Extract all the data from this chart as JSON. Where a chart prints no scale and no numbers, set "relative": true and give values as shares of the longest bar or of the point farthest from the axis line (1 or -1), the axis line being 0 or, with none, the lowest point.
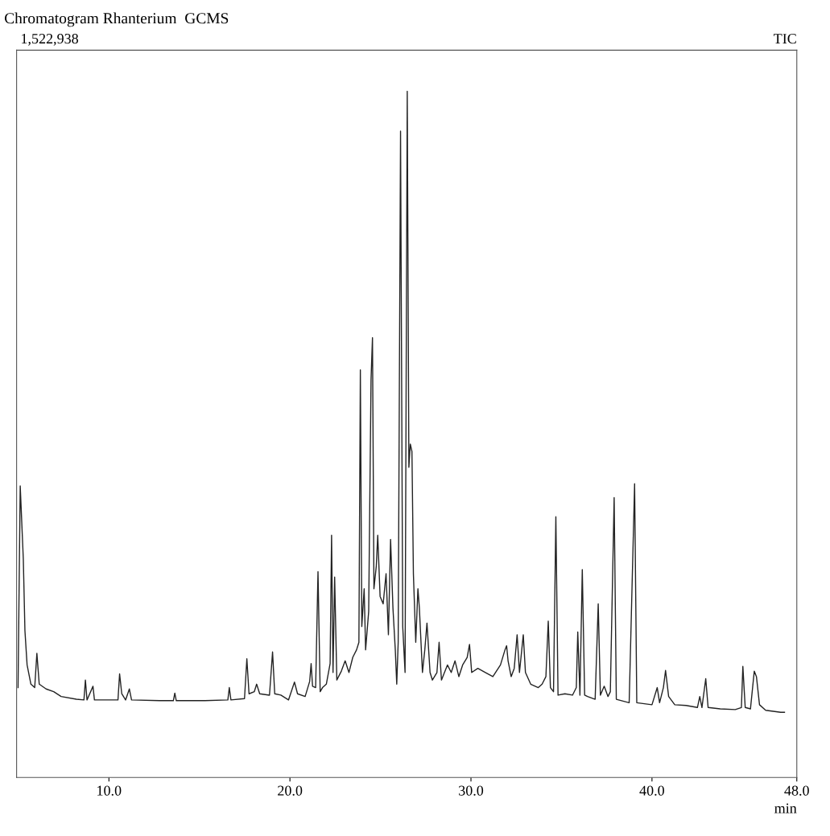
{
  "chart_data": {
    "type": "line",
    "title": "Chromatogram Rhanterium  GCMS",
    "xlabel": "min",
    "relative": true,
    "annotations": [
      "1,522,938",
      "TIC"
    ],
    "xlim": [
      4.9,
      48.0
    ],
    "xticks": [
      {
        "value": 10,
        "label": "10.0"
      },
      {
        "value": 20,
        "label": "20.0"
      },
      {
        "value": 30,
        "label": "30.0"
      },
      {
        "value": 40,
        "label": "40.0"
      },
      {
        "value": 48,
        "label": "48.0"
      }
    ],
    "grid": false,
    "marker": "none",
    "line_style": "solid",
    "series": [
      {
        "color": "#222222",
        "x": [
          4.98,
          5.1,
          5.27,
          5.36,
          5.48,
          5.69,
          5.9,
          6.02,
          6.15,
          6.53,
          6.95,
          7.36,
          8.2,
          8.62,
          8.7,
          8.79,
          9.12,
          9.2,
          10.5,
          10.59,
          10.71,
          10.92,
          11.13,
          11.25,
          12.8,
          13.56,
          13.64,
          13.72,
          15.31,
          16.57,
          16.65,
          16.74,
          17.49,
          17.62,
          17.74,
          18.03,
          18.16,
          18.33,
          18.87,
          19.04,
          19.16,
          19.5,
          19.92,
          20.25,
          20.42,
          20.84,
          21.09,
          21.17,
          21.25,
          21.42,
          21.55,
          21.67,
          21.8,
          22.01,
          22.22,
          22.3,
          22.38,
          22.47,
          22.59,
          22.84,
          23.05,
          23.26,
          23.47,
          23.68,
          23.81,
          23.89,
          23.97,
          24.1,
          24.18,
          24.35,
          24.48,
          24.56,
          24.64,
          24.77,
          24.85,
          24.98,
          25.15,
          25.31,
          25.44,
          25.56,
          25.69,
          25.82,
          25.9,
          25.98,
          26.11,
          26.23,
          26.36,
          26.48,
          26.57,
          26.65,
          26.74,
          26.82,
          26.95,
          27.07,
          27.15,
          27.32,
          27.45,
          27.57,
          27.74,
          27.87,
          28.12,
          28.24,
          28.37,
          28.7,
          28.91,
          29.12,
          29.33,
          29.54,
          29.79,
          29.92,
          30.04,
          30.38,
          30.8,
          31.21,
          31.63,
          31.88,
          31.97,
          32.05,
          32.22,
          32.39,
          32.55,
          32.68,
          32.89,
          33.01,
          33.3,
          33.72,
          33.93,
          34.14,
          34.27,
          34.39,
          34.56,
          34.69,
          34.81,
          35.19,
          35.61,
          35.82,
          35.9,
          36.02,
          36.15,
          36.28,
          36.44,
          36.86,
          37.03,
          37.15,
          37.36,
          37.57,
          37.7,
          37.91,
          38.03,
          38.74,
          39.04,
          39.16,
          40.0,
          40.29,
          40.42,
          40.63,
          40.75,
          40.92,
          41.26,
          41.88,
          42.51,
          42.64,
          42.76,
          42.97,
          43.1,
          43.77,
          44.6,
          44.94,
          45.02,
          45.15,
          45.44,
          45.65,
          45.77,
          45.94,
          46.28,
          47.11,
          47.32
        ],
        "values": [
          0.131,
          0.425,
          0.319,
          0.214,
          0.164,
          0.136,
          0.131,
          0.181,
          0.136,
          0.129,
          0.125,
          0.118,
          0.114,
          0.113,
          0.142,
          0.113,
          0.133,
          0.113,
          0.113,
          0.151,
          0.122,
          0.113,
          0.129,
          0.113,
          0.112,
          0.112,
          0.123,
          0.112,
          0.112,
          0.113,
          0.131,
          0.113,
          0.115,
          0.173,
          0.122,
          0.125,
          0.136,
          0.122,
          0.12,
          0.183,
          0.122,
          0.12,
          0.113,
          0.139,
          0.122,
          0.118,
          0.14,
          0.166,
          0.133,
          0.131,
          0.3,
          0.125,
          0.131,
          0.136,
          0.166,
          0.353,
          0.153,
          0.292,
          0.142,
          0.155,
          0.17,
          0.153,
          0.175,
          0.186,
          0.197,
          0.594,
          0.22,
          0.275,
          0.186,
          0.242,
          0.58,
          0.641,
          0.275,
          0.308,
          0.353,
          0.264,
          0.253,
          0.297,
          0.208,
          0.347,
          0.247,
          0.186,
          0.136,
          0.197,
          0.942,
          0.22,
          0.153,
          1,
          0.452,
          0.486,
          0.475,
          0.297,
          0.197,
          0.275,
          0.247,
          0.153,
          0.186,
          0.225,
          0.153,
          0.142,
          0.153,
          0.197,
          0.142,
          0.164,
          0.153,
          0.17,
          0.147,
          0.164,
          0.175,
          0.194,
          0.153,
          0.159,
          0.153,
          0.147,
          0.164,
          0.186,
          0.192,
          0.17,
          0.147,
          0.159,
          0.208,
          0.153,
          0.208,
          0.153,
          0.136,
          0.131,
          0.136,
          0.147,
          0.228,
          0.131,
          0.125,
          0.38,
          0.12,
          0.122,
          0.12,
          0.131,
          0.212,
          0.12,
          0.303,
          0.12,
          0.118,
          0.114,
          0.253,
          0.12,
          0.133,
          0.118,
          0.125,
          0.408,
          0.114,
          0.109,
          0.428,
          0.109,
          0.106,
          0.131,
          0.109,
          0.131,
          0.156,
          0.118,
          0.106,
          0.105,
          0.102,
          0.118,
          0.102,
          0.144,
          0.102,
          0.1,
          0.099,
          0.102,
          0.162,
          0.102,
          0.1,
          0.155,
          0.147,
          0.106,
          0.098,
          0.095,
          0.095
        ]
      }
    ]
  }
}
